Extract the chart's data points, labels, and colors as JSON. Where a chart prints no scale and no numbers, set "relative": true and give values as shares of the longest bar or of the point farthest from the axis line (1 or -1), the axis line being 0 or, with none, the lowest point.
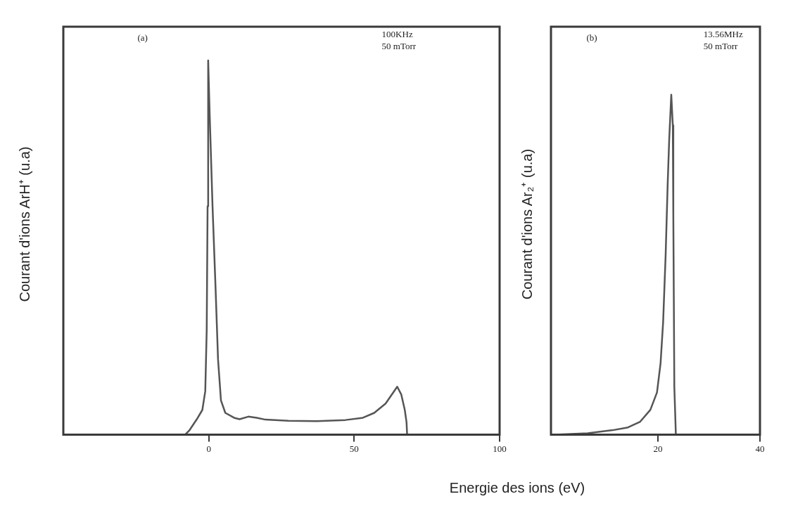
{
  "chart_data": [
    {
      "type": "line",
      "ylabel": "Courant d'ions ArH⁺ (u.a)",
      "relative": true,
      "xlim": [
        -50,
        100
      ],
      "xticks": [
        0,
        50,
        100
      ],
      "grid": false,
      "legend": false,
      "marker": "none",
      "line_style": "solid",
      "annotations": [
        "(a)",
        "100KHz",
        "50 mTorr"
      ],
      "series": [
        {
          "color": "#555555",
          "x": [
            -8.1,
            -6.6,
            -4.1,
            -2.2,
            -1.2,
            -0.7,
            -0.4,
            -0.2,
            0.3,
            1.3,
            2.3,
            3.2,
            4.2,
            5.7,
            8.7,
            10.6,
            13.6,
            16.5,
            19.5,
            27.4,
            37.2,
            47.0,
            53.0,
            56.9,
            60.8,
            63.3,
            64.8,
            66.2,
            67.4,
            68.0,
            68.2
          ],
          "values": [
            0,
            0.012,
            0.041,
            0.066,
            0.116,
            0.28,
            0.61,
            1.0,
            0.86,
            0.61,
            0.4,
            0.2,
            0.091,
            0.058,
            0.045,
            0.041,
            0.048,
            0.045,
            0.04,
            0.037,
            0.036,
            0.039,
            0.045,
            0.058,
            0.083,
            0.111,
            0.128,
            0.107,
            0.066,
            0.033,
            0
          ]
        }
      ]
    },
    {
      "type": "line",
      "ylabel": "Courant d'ions Ar₂⁺ (u.a)",
      "xlabel": "Energie des ions (eV)",
      "relative": true,
      "xlim": [
        -1,
        40
      ],
      "xticks": [
        20,
        40
      ],
      "grid": false,
      "legend": false,
      "marker": "none",
      "line_style": "solid",
      "annotations": [
        "(b)",
        "13.56MHz",
        "50 mTorr"
      ],
      "series": [
        {
          "color": "#555555",
          "x": [
            -0.2,
            6.2,
            11.1,
            14.1,
            16.5,
            18.5,
            19.8,
            20.5,
            21.0,
            21.5,
            21.9,
            22.2,
            22.6,
            22.9,
            23.0,
            23.1,
            23.2,
            23.5
          ],
          "values": [
            0,
            0.004,
            0.013,
            0.021,
            0.038,
            0.073,
            0.124,
            0.21,
            0.33,
            0.53,
            0.74,
            0.87,
            1.0,
            0.91,
            0.65,
            0.4,
            0.14,
            0
          ]
        }
      ]
    }
  ]
}
